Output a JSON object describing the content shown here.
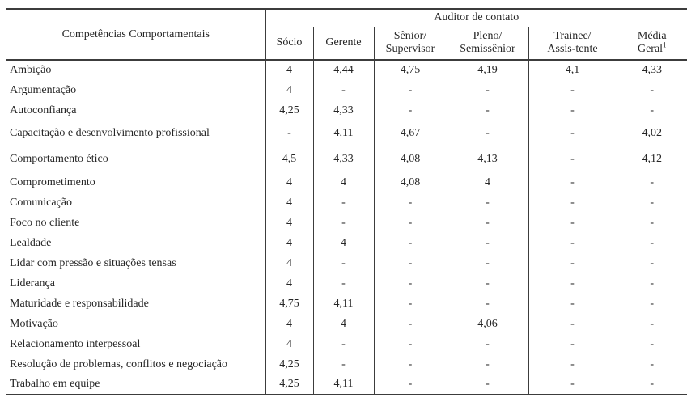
{
  "page": {
    "background": "#ffffff",
    "text_color": "#262626",
    "border_color": "#3c3c3c"
  },
  "table": {
    "corner_header": "Competências Comportamentais",
    "group_header": "Auditor de contato",
    "columns": [
      {
        "lines": [
          "Sócio"
        ]
      },
      {
        "lines": [
          "Gerente"
        ]
      },
      {
        "lines": [
          "Sênior/",
          "Supervisor"
        ]
      },
      {
        "lines": [
          "Pleno/",
          "Semissênior"
        ]
      },
      {
        "lines": [
          "Trainee/",
          "Assis-tente"
        ]
      },
      {
        "lines": [
          "Média",
          "Geral"
        ],
        "sup": "1"
      }
    ],
    "rows": [
      {
        "label": "Ambição",
        "values": [
          "4",
          "4,44",
          "4,75",
          "4,19",
          "4,1",
          "4,33"
        ],
        "tall": false
      },
      {
        "label": "Argumentação",
        "values": [
          "4",
          "-",
          "-",
          "-",
          "-",
          "-"
        ],
        "tall": false
      },
      {
        "label": "Autoconfiança",
        "values": [
          "4,25",
          "4,33",
          "-",
          "-",
          "-",
          "-"
        ],
        "tall": false
      },
      {
        "label": "Capacitação e desenvolvimento profissional",
        "values": [
          "-",
          "4,11",
          "4,67",
          "-",
          "-",
          "4,02"
        ],
        "tall": true
      },
      {
        "label": "Comportamento ético",
        "values": [
          "4,5",
          "4,33",
          "4,08",
          "4,13",
          "-",
          "4,12"
        ],
        "tall": true
      },
      {
        "label": "Comprometimento",
        "values": [
          "4",
          "4",
          "4,08",
          "4",
          "-",
          "-"
        ],
        "tall": false
      },
      {
        "label": "Comunicação",
        "values": [
          "4",
          "-",
          "-",
          "-",
          "-",
          "-"
        ],
        "tall": false
      },
      {
        "label": "Foco no cliente",
        "values": [
          "4",
          "-",
          "-",
          "-",
          "-",
          "-"
        ],
        "tall": false
      },
      {
        "label": "Lealdade",
        "values": [
          "4",
          "4",
          "-",
          "-",
          "-",
          "-"
        ],
        "tall": false
      },
      {
        "label": "Lidar com pressão e situações tensas",
        "values": [
          "4",
          "-",
          "-",
          "-",
          "-",
          "-"
        ],
        "tall": false
      },
      {
        "label": "Liderança",
        "values": [
          "4",
          "-",
          "-",
          "-",
          "-",
          "-"
        ],
        "tall": false
      },
      {
        "label": "Maturidade e responsabilidade",
        "values": [
          "4,75",
          "4,11",
          "-",
          "-",
          "-",
          "-"
        ],
        "tall": false
      },
      {
        "label": "Motivação",
        "values": [
          "4",
          "4",
          "-",
          "4,06",
          "-",
          "-"
        ],
        "tall": false
      },
      {
        "label": "Relacionamento interpessoal",
        "values": [
          "4",
          "-",
          "-",
          "-",
          "-",
          "-"
        ],
        "tall": false
      },
      {
        "label": "Resolução de problemas, conflitos e negociação",
        "values": [
          "4,25",
          "-",
          "-",
          "-",
          "-",
          "-"
        ],
        "tall": false
      },
      {
        "label": "Trabalho em equipe",
        "values": [
          "4,25",
          "4,11",
          "-",
          "-",
          "-",
          "-"
        ],
        "tall": false
      }
    ]
  }
}
